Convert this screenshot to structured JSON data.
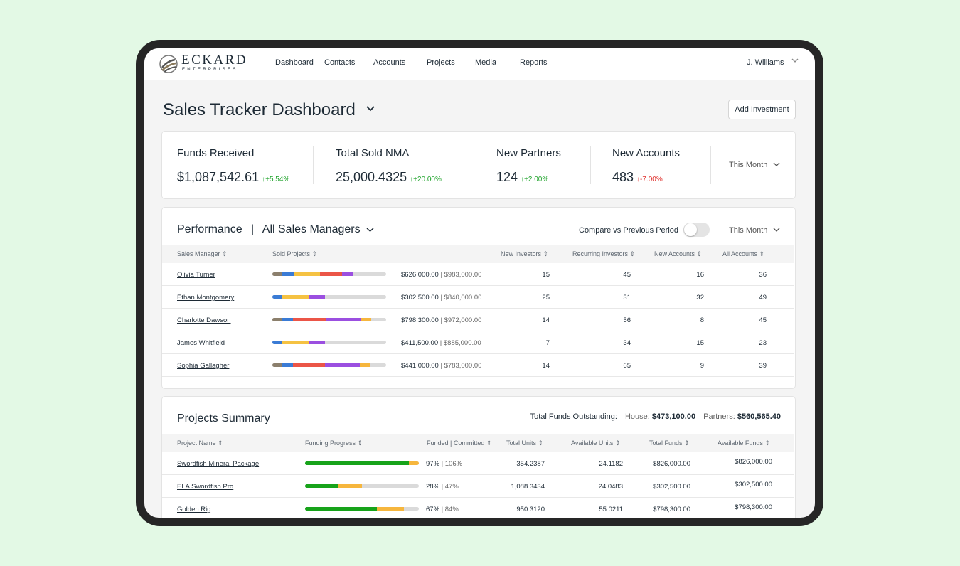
{
  "nav": {
    "logo_main": "ECKARD",
    "logo_sub": "ENTERPRISES",
    "items": [
      "Dashboard",
      "Contacts",
      "Accounts",
      "Projects",
      "Media",
      "Reports"
    ],
    "user": "J. Williams"
  },
  "page": {
    "title": "Sales Tracker Dashboard",
    "add_button": "Add Investment"
  },
  "kpis": [
    {
      "label": "Funds Received",
      "value": "$1,087,542.61",
      "delta": "↑+5.54%",
      "trend": "up"
    },
    {
      "label": "Total Sold NMA",
      "value": "25,000.4325",
      "delta": "↑+20.00%",
      "trend": "up"
    },
    {
      "label": "New Partners",
      "value": "124",
      "delta": "↑+2.00%",
      "trend": "up"
    },
    {
      "label": "New Accounts",
      "value": "483",
      "delta": "↓-7.00%",
      "trend": "down"
    }
  ],
  "kpi_period": "This Month",
  "performance": {
    "title": "Performance",
    "separator": "|",
    "filter": "All Sales Managers",
    "compare_label": "Compare vs Previous Period",
    "compare_on": false,
    "period": "This Month",
    "columns": [
      "Sales Manager",
      "Sold Projects",
      "New Investors",
      "Recurring Investors",
      "New Accounts",
      "All Accounts"
    ],
    "segment_colors": [
      "#8b7f6c",
      "#3a7bd5",
      "#f5c242",
      "#eb5547",
      "#9b4fe0",
      "#f6b63d"
    ],
    "rows": [
      {
        "name": "Olivia Turner",
        "sold": "$626,000.00",
        "total": "$983,000.00",
        "segments": [
          0.09,
          0.1,
          0.23,
          0.19,
          0.1,
          0
        ],
        "new_investors": "15",
        "recurring": "45",
        "new_accounts": "16",
        "all_accounts": "36"
      },
      {
        "name": "Ethan Montgomery",
        "sold": "$302,500.00",
        "total": "$840,000.00",
        "segments": [
          0,
          0.09,
          0.23,
          0,
          0.14,
          0
        ],
        "new_investors": "25",
        "recurring": "31",
        "new_accounts": "32",
        "all_accounts": "49"
      },
      {
        "name": "Charlotte Dawson",
        "sold": "$798,300.00",
        "total": "$972,000.00",
        "segments": [
          0.09,
          0.09,
          0,
          0.29,
          0.31,
          0.09
        ],
        "new_investors": "14",
        "recurring": "56",
        "new_accounts": "8",
        "all_accounts": "45"
      },
      {
        "name": "James Whitfield",
        "sold": "$411,500.00",
        "total": "$885,000.00",
        "segments": [
          0,
          0.09,
          0.23,
          0,
          0.14,
          0
        ],
        "new_investors": "7",
        "recurring": "34",
        "new_accounts": "15",
        "all_accounts": "23"
      },
      {
        "name": "Sophia Gallagher",
        "sold": "$441,000.00",
        "total": "$783,000.00",
        "segments": [
          0.09,
          0.09,
          0,
          0.28,
          0.31,
          0.09
        ],
        "new_investors": "14",
        "recurring": "65",
        "new_accounts": "9",
        "all_accounts": "39"
      }
    ]
  },
  "projects": {
    "title": "Projects Summary",
    "outstanding_label": "Total Funds Outstanding:",
    "house_label": "House:",
    "house_value": "$473,100.00",
    "partners_label": "Partners:",
    "partners_value": "$560,565.40",
    "columns": [
      "Project Name",
      "Funding Progress",
      "Funded | Committed",
      "Total Units",
      "Available Units",
      "Total Funds",
      "Available Funds"
    ],
    "colors": {
      "funded": "#17a31a",
      "committed": "#f6b63d"
    },
    "rows": [
      {
        "name": "Swordfish Mineral Package",
        "funded_frac": 0.92,
        "committed_frac": 0.09,
        "funded": "97%",
        "committed": "106%",
        "total_units": "354.2387",
        "available_units": "24.1182",
        "total_funds": "$826,000.00",
        "available_funds": "$826,000.00"
      },
      {
        "name": "ELA Swordfish Pro",
        "funded_frac": 0.29,
        "committed_frac": 0.21,
        "funded": "28%",
        "committed": "47%",
        "total_units": "1,088.3434",
        "available_units": "24.0483",
        "total_funds": "$302,500.00",
        "available_funds": "$302,500.00"
      },
      {
        "name": "Golden Rig",
        "funded_frac": 0.63,
        "committed_frac": 0.24,
        "funded": "67%",
        "committed": "84%",
        "total_units": "950.3120",
        "available_units": "55.0211",
        "total_funds": "$798,300.00",
        "available_funds": "$798,300.00"
      }
    ]
  }
}
